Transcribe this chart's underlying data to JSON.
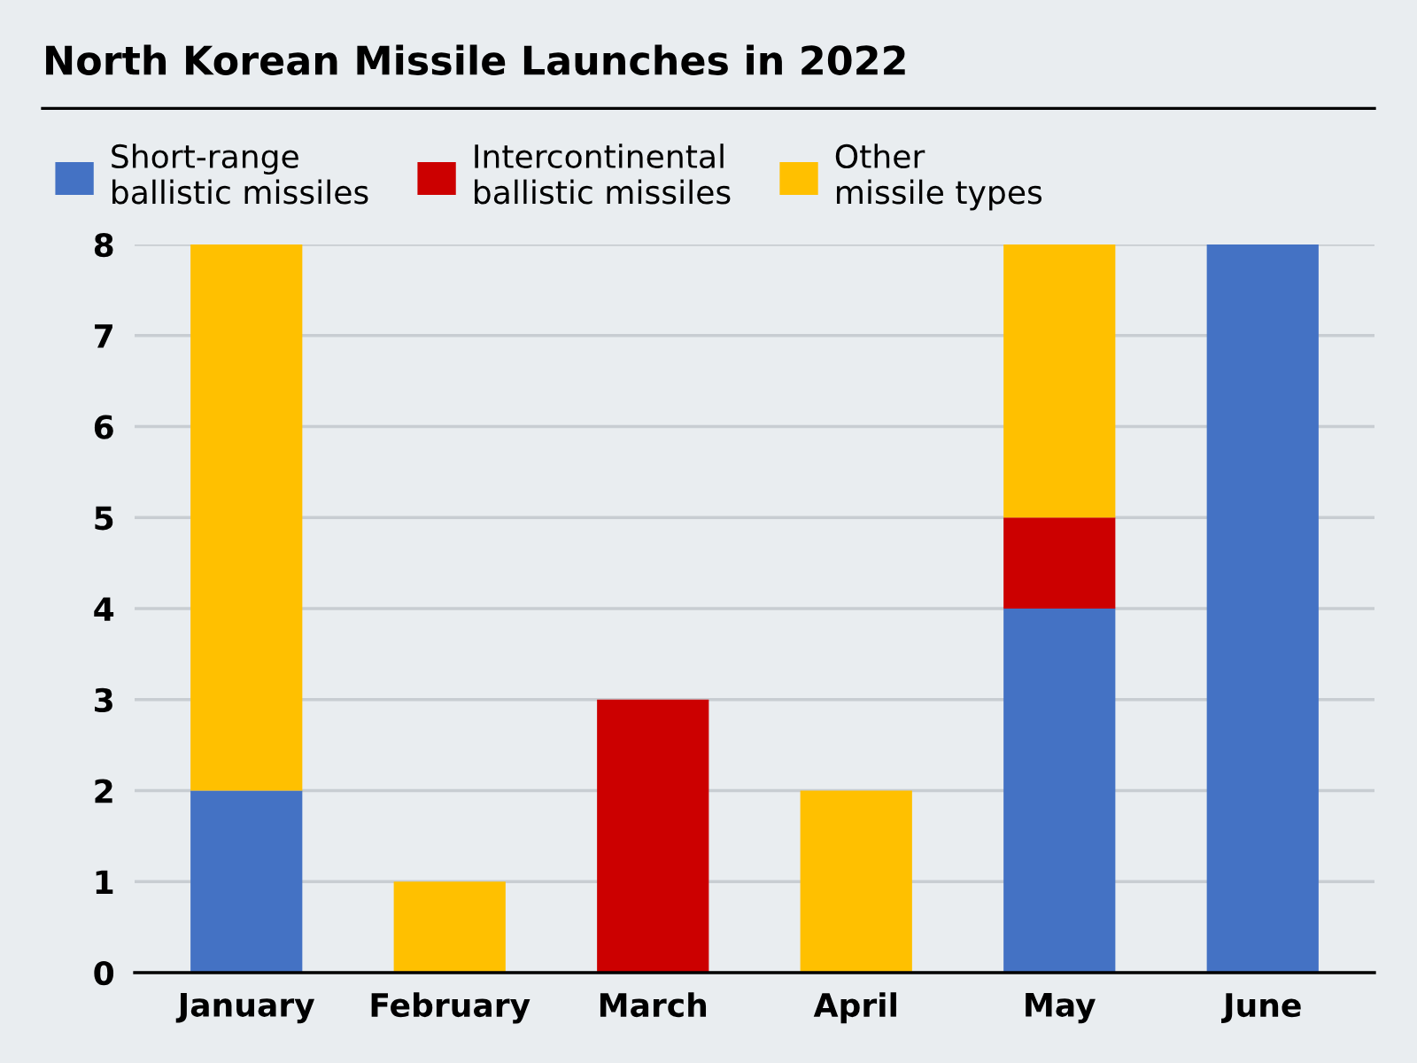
{
  "chart_data": {
    "type": "bar",
    "title": "North Korean Missile Launches in 2022",
    "categories": [
      "January",
      "February",
      "March",
      "April",
      "May",
      "June"
    ],
    "series": [
      {
        "name": "Short-range\nballistic missiles",
        "color": "#4472c4",
        "values": [
          2,
          0,
          0,
          0,
          4,
          8
        ]
      },
      {
        "name": "Intercontinental\nballistic missiles",
        "color": "#cc0000",
        "values": [
          0,
          0,
          3,
          0,
          1,
          0
        ]
      },
      {
        "name": "Other\nmissile types",
        "color": "#ffc000",
        "values": [
          6,
          1,
          0,
          2,
          3,
          0
        ]
      }
    ],
    "stacked": true,
    "ylim": [
      0,
      8
    ],
    "yticks": [
      0,
      1,
      2,
      3,
      4,
      5,
      6,
      7,
      8
    ],
    "grid": "y",
    "legend": "top left"
  }
}
